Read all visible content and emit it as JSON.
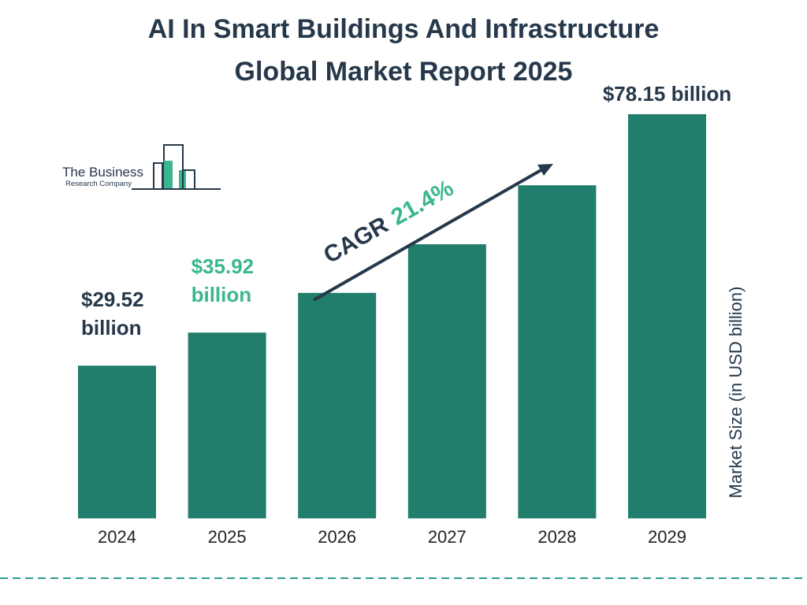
{
  "title_lines": [
    "AI In Smart Buildings And Infrastructure",
    "Global Market Report 2025"
  ],
  "logo": {
    "line1": "The Business",
    "line2": "Research Company"
  },
  "cagr": {
    "label": "CAGR",
    "value": "21.4%"
  },
  "colors": {
    "bar": "#217d6c",
    "accent": "#3bb78f",
    "dark": "#26384a",
    "divider": "#2a9d8f"
  },
  "chart_data": {
    "type": "bar",
    "categories": [
      "2024",
      "2025",
      "2026",
      "2027",
      "2028",
      "2029"
    ],
    "values": [
      29.52,
      35.92,
      43.6,
      53.0,
      64.4,
      78.15
    ],
    "ylabel": "Market Size (in USD billion)",
    "ylim": [
      0,
      85
    ],
    "grid": false,
    "data_labels": [
      {
        "index": 0,
        "lines": [
          "$29.52",
          "billion"
        ],
        "color": "#26384a"
      },
      {
        "index": 1,
        "lines": [
          "$35.92",
          "billion"
        ],
        "color": "#3bb78f"
      },
      {
        "index": 5,
        "lines": [
          "$78.15 billion"
        ],
        "color": "#26384a"
      }
    ]
  }
}
